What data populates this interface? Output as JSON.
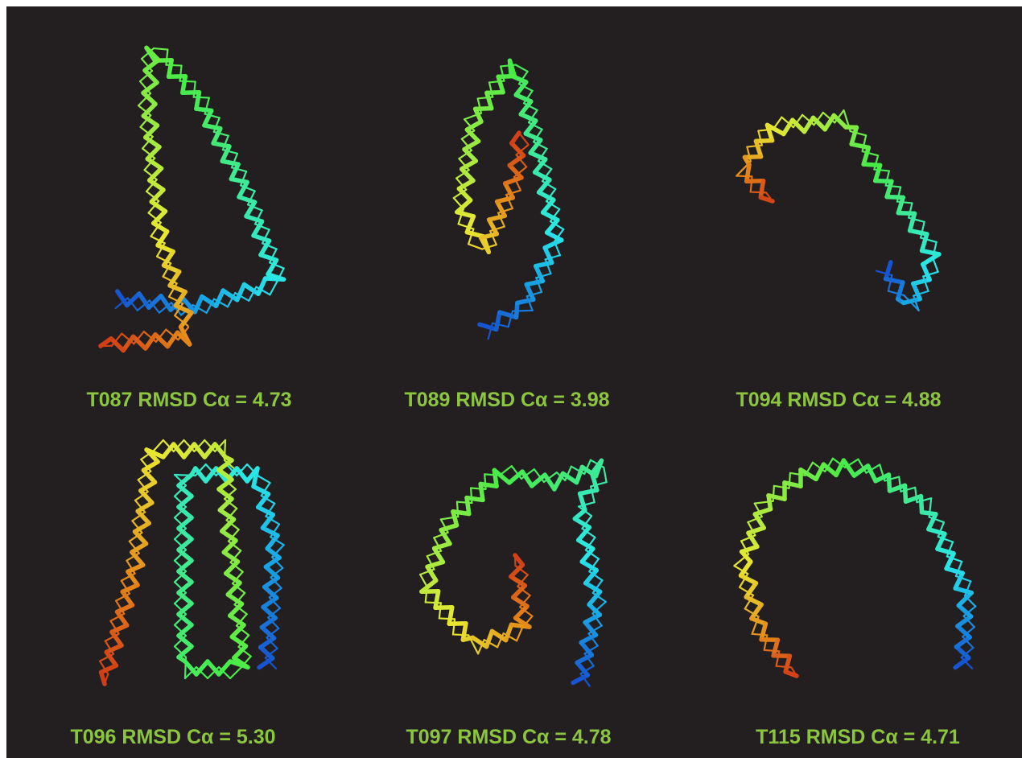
{
  "figures": [
    {
      "label": "T087  RMSD Cα = 4.73"
    },
    {
      "label": "T089 RMSD Cα = 3.98"
    },
    {
      "label": "T094 RMSD Cα = 4.88"
    },
    {
      "label": "T096 RMSD Cα = 5.30"
    },
    {
      "label": "T097 RMSD Cα = 4.78"
    },
    {
      "label": "T115 RMSD Cα = 4.71"
    }
  ]
}
